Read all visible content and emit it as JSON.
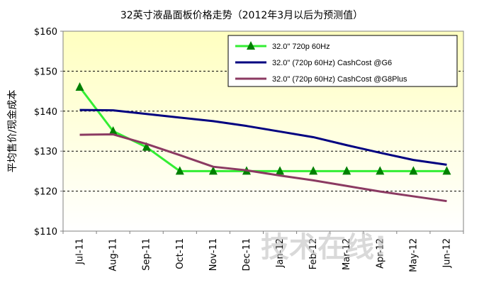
{
  "chart_data": {
    "type": "line",
    "title": "32英寸液晶面板价格走势（2012年3月以后为预测值）",
    "ylabel": "平均售价/现金成本",
    "xlabel": "",
    "ylim": [
      110,
      160
    ],
    "yticks": [
      110,
      120,
      130,
      140,
      150,
      160
    ],
    "ytick_labels": [
      "$110",
      "$120",
      "$130",
      "$140",
      "$150",
      "$160"
    ],
    "categories": [
      "Jul-11",
      "Aug-11",
      "Sep-11",
      "Oct-11",
      "Nov-11",
      "Dec-11",
      "Jan-12",
      "Feb-12",
      "Mar-12",
      "Apr-12",
      "May-12",
      "Jun-12"
    ],
    "grid": "horizontal dashed",
    "legend_position": "top-right",
    "series": [
      {
        "name": "32.0\" 720p 60Hz",
        "color": "#33ee33",
        "marker": "triangle",
        "values": [
          146,
          135,
          131,
          125,
          125,
          125,
          125,
          125,
          125,
          125,
          125,
          125
        ]
      },
      {
        "name": "32.0\" (720p 60Hz) CashCost @G6",
        "color": "#000080",
        "marker": "none",
        "values": [
          140.3,
          140.2,
          139.3,
          138.4,
          137.5,
          136.3,
          134.9,
          133.5,
          131.5,
          129.6,
          127.8,
          126.6
        ]
      },
      {
        "name": "32.0\" (720p 60Hz) CashCost @G8Plus",
        "color": "#8b3a62",
        "marker": "none",
        "values": [
          134.1,
          134.2,
          131.8,
          129,
          126.1,
          125.2,
          123.9,
          122.7,
          121.3,
          119.9,
          118.7,
          117.5
        ]
      }
    ],
    "plot_background": [
      "#ffffc0",
      "#ffffff"
    ]
  },
  "watermark": "技术在线!"
}
